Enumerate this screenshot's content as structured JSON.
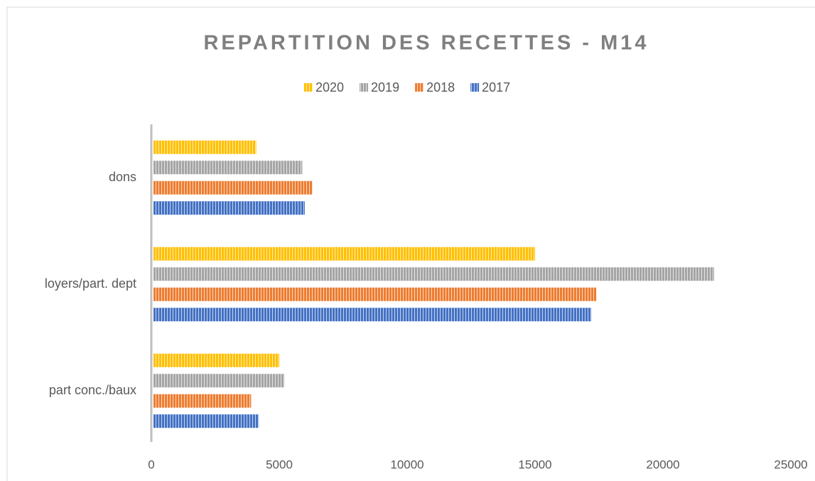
{
  "chart_data": {
    "type": "bar",
    "orientation": "horizontal",
    "title": "REPARTITION DES RECETTES - M14",
    "categories": [
      "dons",
      "loyers/part. dept",
      "part conc./baux"
    ],
    "series": [
      {
        "name": "2020",
        "color": "#ffc000",
        "values": [
          4100,
          15000,
          5000
        ]
      },
      {
        "name": "2019",
        "color": "#a5a5a5",
        "values": [
          5900,
          22000,
          5200
        ]
      },
      {
        "name": "2018",
        "color": "#ed7d31",
        "values": [
          6300,
          17400,
          3900
        ]
      },
      {
        "name": "2017",
        "color": "#4472c4",
        "values": [
          6000,
          17200,
          4200
        ]
      }
    ],
    "xlim": [
      0,
      25000
    ],
    "xticks": [
      0,
      5000,
      10000,
      15000,
      20000,
      25000
    ],
    "legend": "top",
    "grid": false
  }
}
